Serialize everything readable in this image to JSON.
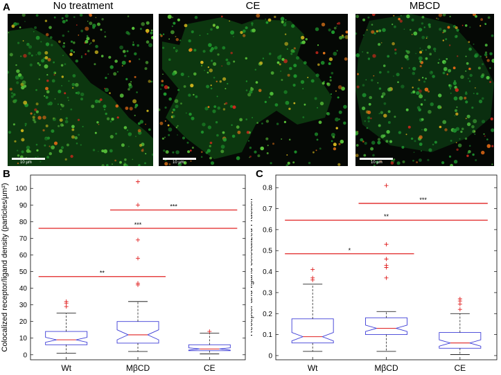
{
  "figure": {
    "panel_a": {
      "letter": "A",
      "images": [
        {
          "title": "No treatment",
          "scale_bar": "10 µm",
          "palette": [
            "#0d3a10",
            "#1f8f2a",
            "#58c23a",
            "#c7b21a",
            "#e06a16",
            "#c9281c"
          ]
        },
        {
          "title": "CE",
          "scale_bar": "10 µm",
          "palette": [
            "#0d3a10",
            "#1f9a2d",
            "#5cc83a",
            "#d6b81e",
            "#e27518",
            "#c9281c"
          ]
        },
        {
          "title": "MBCD",
          "scale_bar": "10 µm",
          "palette": [
            "#0b3010",
            "#1c8a2c",
            "#4dbf3d",
            "#d2a61c",
            "#e36a16",
            "#c9281c"
          ]
        }
      ]
    },
    "panel_b": {
      "letter": "B"
    },
    "panel_c": {
      "letter": "C"
    }
  },
  "colors": {
    "box": "#3b3bd6",
    "median": "#e02020",
    "outlier": "#e02020",
    "significance": "#e02020"
  },
  "chart_data": [
    {
      "type": "box",
      "panel": "B",
      "title": "",
      "xlabel": "",
      "ylabel": "Colocalized receptor/ligand density (particles/µm²)",
      "ylim": [
        -3,
        108
      ],
      "yticks": [
        0,
        10,
        20,
        30,
        40,
        50,
        60,
        70,
        80,
        90,
        100
      ],
      "categories": [
        "Wt",
        "MβCD",
        "CE"
      ],
      "boxes": [
        {
          "name": "Wt",
          "whisker_low": 1,
          "q1": 6,
          "median": 9,
          "q3": 14,
          "whisker_high": 25,
          "notch_low": 7.5,
          "notch_high": 10.5,
          "outliers": [
            29,
            31,
            32
          ]
        },
        {
          "name": "MβCD",
          "whisker_low": 2,
          "q1": 7,
          "median": 12,
          "q3": 20,
          "whisker_high": 32,
          "notch_low": 9,
          "notch_high": 15,
          "outliers": [
            42,
            43,
            58,
            69,
            90,
            104
          ]
        },
        {
          "name": "CE",
          "whisker_low": 0.5,
          "q1": 2.5,
          "median": 3.5,
          "q3": 6,
          "whisker_high": 13,
          "notch_low": 2.8,
          "notch_high": 4.2,
          "outliers": [
            14
          ]
        }
      ],
      "significance": [
        {
          "from": "MβCD",
          "to": "CE",
          "y": 87,
          "label": "***"
        },
        {
          "from": "Wt",
          "to": "CE",
          "y": 76,
          "label": "***"
        },
        {
          "from": "Wt",
          "to": "MβCD",
          "y": 47,
          "label": "**"
        }
      ]
    },
    {
      "type": "box",
      "panel": "C",
      "title": "",
      "xlabel": "",
      "ylabel": "Receptor and ligand colocalized Fraction",
      "ylim": [
        -0.02,
        0.86
      ],
      "yticks": [
        0,
        0.1,
        0.2,
        0.3,
        0.4,
        0.5,
        0.6,
        0.7,
        0.8
      ],
      "categories": [
        "Wt",
        "MβCD",
        "CE"
      ],
      "boxes": [
        {
          "name": "Wt",
          "whisker_low": 0.02,
          "q1": 0.06,
          "median": 0.09,
          "q3": 0.175,
          "whisker_high": 0.34,
          "notch_low": 0.07,
          "notch_high": 0.11,
          "outliers": [
            0.36,
            0.37,
            0.41
          ]
        },
        {
          "name": "MβCD",
          "whisker_low": 0.02,
          "q1": 0.1,
          "median": 0.13,
          "q3": 0.18,
          "whisker_high": 0.21,
          "notch_low": 0.115,
          "notch_high": 0.145,
          "outliers": [
            0.37,
            0.42,
            0.43,
            0.46,
            0.53,
            0.81
          ]
        },
        {
          "name": "CE",
          "whisker_low": 0.005,
          "q1": 0.035,
          "median": 0.06,
          "q3": 0.11,
          "whisker_high": 0.2,
          "notch_low": 0.045,
          "notch_high": 0.075,
          "outliers": [
            0.22,
            0.245,
            0.26,
            0.27
          ]
        }
      ],
      "significance": [
        {
          "from": "MβCD",
          "to": "CE",
          "y": 0.725,
          "label": "***"
        },
        {
          "from": "Wt",
          "to": "CE",
          "y": 0.645,
          "label": "**"
        },
        {
          "from": "Wt",
          "to": "MβCD",
          "y": 0.485,
          "label": "*"
        }
      ]
    }
  ]
}
